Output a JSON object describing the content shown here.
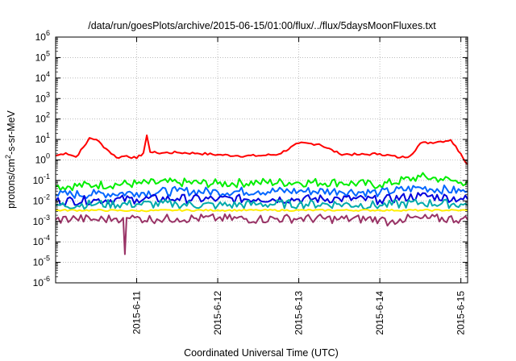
{
  "chart_data": {
    "type": "line",
    "title": "/data/run/goesPlots/archive/2015-06-15/01:00/flux/../flux/5daysMoonFluxes.txt",
    "xlabel": "Coordinated Universal Time (UTC)",
    "ylabel_parts": {
      "pre": "protons/cm",
      "sup": "2",
      "post": "-s-sr-MeV"
    },
    "y_scale": "log",
    "ylim_exp": [
      -6,
      6
    ],
    "y_ticks": [
      {
        "base": "10",
        "exp": "-6"
      },
      {
        "base": "10",
        "exp": "-5"
      },
      {
        "base": "10",
        "exp": "-4"
      },
      {
        "base": "10",
        "exp": "-3"
      },
      {
        "base": "10",
        "exp": "-2"
      },
      {
        "base": "10",
        "exp": "-1"
      },
      {
        "base": "10",
        "exp": "0"
      },
      {
        "base": "10",
        "exp": "1"
      },
      {
        "base": "10",
        "exp": "2"
      },
      {
        "base": "10",
        "exp": "3"
      },
      {
        "base": "10",
        "exp": "4"
      },
      {
        "base": "10",
        "exp": "5"
      },
      {
        "base": "10",
        "exp": "6"
      }
    ],
    "x_range_days": [
      "2015-06-10T00:00",
      "2015-06-15T02:00"
    ],
    "x_ticks": [
      "2015-6-11",
      "2015-6-12",
      "2015-6-13",
      "2015-6-14",
      "2015-6-15"
    ],
    "grid": true,
    "legend": "none",
    "series": [
      {
        "color": "#ff0000",
        "x": [
          "2015-06-10T00:00",
          "2015-06-10T03:00",
          "2015-06-10T06:00",
          "2015-06-10T09:00",
          "2015-06-10T10:00",
          "2015-06-10T12:00",
          "2015-06-10T15:00",
          "2015-06-10T18:00",
          "2015-06-10T21:00",
          "2015-06-11T00:00",
          "2015-06-11T02:00",
          "2015-06-11T03:00",
          "2015-06-11T04:00",
          "2015-06-11T06:00",
          "2015-06-11T12:00",
          "2015-06-11T18:00",
          "2015-06-12T00:00",
          "2015-06-12T06:00",
          "2015-06-12T12:00",
          "2015-06-12T18:00",
          "2015-06-13T00:00",
          "2015-06-13T06:00",
          "2015-06-13T12:00",
          "2015-06-13T18:00",
          "2015-06-14T00:00",
          "2015-06-14T06:00",
          "2015-06-14T09:00",
          "2015-06-14T12:00",
          "2015-06-14T18:00",
          "2015-06-14T21:00",
          "2015-06-15T00:00",
          "2015-06-15T02:00"
        ],
        "y": [
          1.6,
          2.2,
          1.4,
          6.0,
          12,
          10,
          3.5,
          1.3,
          1.6,
          1.2,
          2.2,
          16,
          2.4,
          2.2,
          2.3,
          2.1,
          1.8,
          1.6,
          1.6,
          1.9,
          6.5,
          6.0,
          2.0,
          1.8,
          2.0,
          1.3,
          1.6,
          6.5,
          8.0,
          9.5,
          2.0,
          0.6
        ]
      },
      {
        "color": "#00ee00",
        "x": [
          "2015-06-10T00:00",
          "2015-06-10T12:00",
          "2015-06-11T00:00",
          "2015-06-11T12:00",
          "2015-06-12T00:00",
          "2015-06-12T12:00",
          "2015-06-13T00:00",
          "2015-06-13T12:00",
          "2015-06-14T00:00",
          "2015-06-14T12:00",
          "2015-06-14T18:00",
          "2015-06-15T00:00",
          "2015-06-15T02:00"
        ],
        "y": [
          0.05,
          0.06,
          0.07,
          0.08,
          0.07,
          0.08,
          0.08,
          0.08,
          0.06,
          0.15,
          0.12,
          0.08,
          0.1
        ]
      },
      {
        "color": "#0066ff",
        "x": [
          "2015-06-10T00:00",
          "2015-06-10T12:00",
          "2015-06-11T00:00",
          "2015-06-11T12:00",
          "2015-06-12T00:00",
          "2015-06-12T12:00",
          "2015-06-13T00:00",
          "2015-06-13T12:00",
          "2015-06-14T00:00",
          "2015-06-14T12:00",
          "2015-06-15T00:00",
          "2015-06-15T02:00"
        ],
        "y": [
          0.02,
          0.022,
          0.025,
          0.03,
          0.028,
          0.03,
          0.03,
          0.03,
          0.025,
          0.045,
          0.03,
          0.03
        ]
      },
      {
        "color": "#0000dd",
        "x": [
          "2015-06-10T00:00",
          "2015-06-10T12:00",
          "2015-06-11T00:00",
          "2015-06-11T12:00",
          "2015-06-12T00:00",
          "2015-06-12T12:00",
          "2015-06-13T00:00",
          "2015-06-13T12:00",
          "2015-06-14T00:00",
          "2015-06-14T12:00",
          "2015-06-15T00:00",
          "2015-06-15T02:00"
        ],
        "y": [
          0.01,
          0.011,
          0.012,
          0.013,
          0.012,
          0.013,
          0.012,
          0.013,
          0.011,
          0.018,
          0.013,
          0.012
        ]
      },
      {
        "color": "#00aaaa",
        "x": [
          "2015-06-10T00:00",
          "2015-06-10T12:00",
          "2015-06-11T00:00",
          "2015-06-11T12:00",
          "2015-06-12T00:00",
          "2015-06-12T12:00",
          "2015-06-13T00:00",
          "2015-06-13T12:00",
          "2015-06-14T00:00",
          "2015-06-14T12:00",
          "2015-06-15T00:00",
          "2015-06-15T02:00"
        ],
        "y": [
          0.006,
          0.007,
          0.007,
          0.007,
          0.006,
          0.007,
          0.007,
          0.007,
          0.006,
          0.008,
          0.007,
          0.006
        ]
      },
      {
        "color": "#ffee00",
        "x": [
          "2015-06-10T00:00",
          "2015-06-10T12:00",
          "2015-06-11T00:00",
          "2015-06-11T12:00",
          "2015-06-12T00:00",
          "2015-06-12T12:00",
          "2015-06-13T00:00",
          "2015-06-13T12:00",
          "2015-06-14T00:00",
          "2015-06-14T12:00",
          "2015-06-15T00:00",
          "2015-06-15T02:00"
        ],
        "y": [
          0.0035,
          0.0035,
          0.0033,
          0.0035,
          0.0035,
          0.0035,
          0.0035,
          0.0035,
          0.0035,
          0.0035,
          0.0035,
          0.0035
        ]
      },
      {
        "color": "#993366",
        "x": [
          "2015-06-10T00:00",
          "2015-06-10T06:00",
          "2015-06-10T12:00",
          "2015-06-10T18:00",
          "2015-06-10T20:00",
          "2015-06-10T20:30",
          "2015-06-10T21:00",
          "2015-06-10T22:00",
          "2015-06-11T06:00",
          "2015-06-11T12:00",
          "2015-06-12T00:00",
          "2015-06-12T12:00",
          "2015-06-13T00:00",
          "2015-06-13T12:00",
          "2015-06-14T00:00",
          "2015-06-14T03:00",
          "2015-06-14T06:00",
          "2015-06-14T12:00",
          "2015-06-15T00:00",
          "2015-06-15T02:00"
        ],
        "y": [
          0.0012,
          0.0014,
          0.0012,
          0.0014,
          0.0015,
          2.5e-05,
          0.0015,
          0.0014,
          0.0013,
          0.0014,
          0.0014,
          0.0013,
          0.0014,
          0.0013,
          0.0013,
          0.0009,
          0.0013,
          0.0014,
          0.0013,
          0.0012
        ]
      }
    ]
  }
}
